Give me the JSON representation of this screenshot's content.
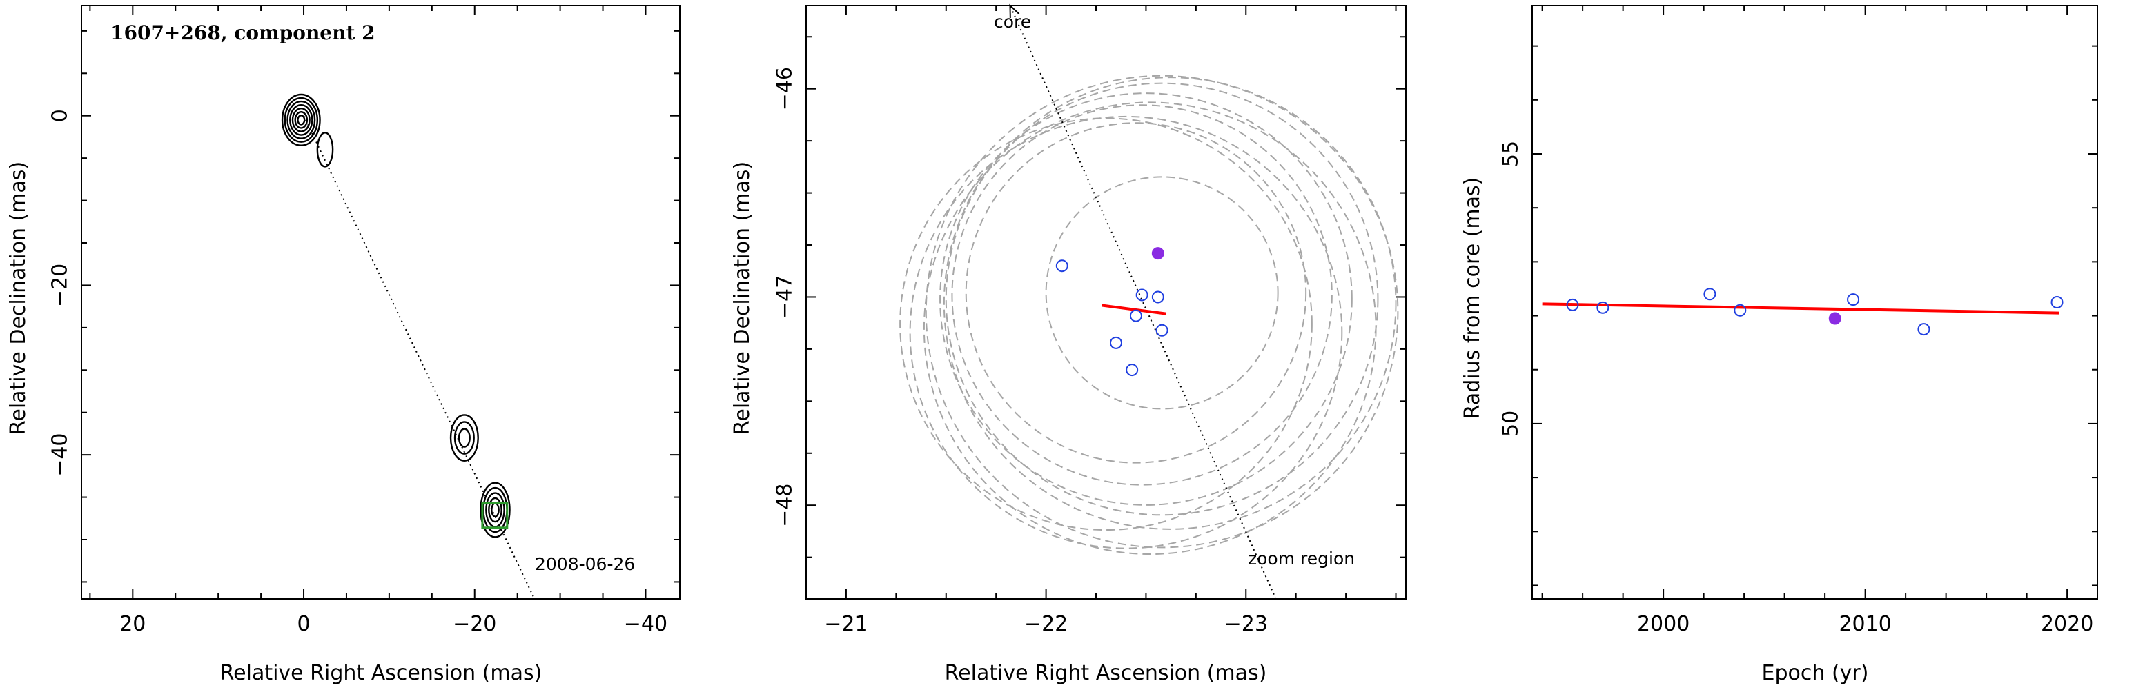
{
  "chart_data": [
    {
      "type": "contour",
      "title": "1607+268, component 2",
      "annotation": "2008-06-26",
      "xlabel": "Relative Right Ascension (mas)",
      "ylabel": "Relative Declination (mas)",
      "xlim": [
        26,
        -44
      ],
      "ylim": [
        -57,
        13
      ],
      "xticks": [
        20,
        0,
        -20,
        -40
      ],
      "yticks": [
        0,
        -20,
        -40
      ],
      "jet_line": {
        "from": [
          0,
          0
        ],
        "to": [
          -27,
          -57
        ]
      },
      "zoom_box": {
        "x": [
          -20.9,
          -23.8
        ],
        "y": [
          -45.7,
          -48.6
        ],
        "color": "#2e9b2e"
      },
      "contour_groups": [
        {
          "center": [
            0.3,
            -0.5
          ],
          "levels": 7,
          "rx_max": 2.2,
          "ry_max": 3.0
        },
        {
          "center": [
            -2.5,
            -4.0
          ],
          "levels": 1,
          "rx_max": 0.9,
          "ry_max": 2.0
        },
        {
          "center": [
            -18.8,
            -38.0
          ],
          "levels": 3,
          "rx_max": 1.6,
          "ry_max": 2.7
        },
        {
          "center": [
            -22.4,
            -46.5
          ],
          "levels": 5,
          "rx_max": 1.7,
          "ry_max": 3.2
        }
      ]
    },
    {
      "type": "scatter",
      "xlabel": "Relative Right Ascension (mas)",
      "ylabel": "Relative Declination (mas)",
      "xlim": [
        -20.8,
        -23.8
      ],
      "ylim": [
        -48.45,
        -45.6
      ],
      "xticks": [
        -21,
        -22,
        -23
      ],
      "yticks": [
        -46,
        -47,
        -48
      ],
      "labels": {
        "core": "core",
        "zoom": "zoom region"
      },
      "core_arrow": {
        "from": [
          -23.15,
          -48.45
        ],
        "to": [
          -21.82,
          -45.6
        ]
      },
      "points": [
        {
          "x": -22.08,
          "y": -46.85,
          "filled": false
        },
        {
          "x": -22.56,
          "y": -46.79,
          "filled": true
        },
        {
          "x": -22.48,
          "y": -46.99,
          "filled": false
        },
        {
          "x": -22.56,
          "y": -47.0,
          "filled": false
        },
        {
          "x": -22.45,
          "y": -47.09,
          "filled": false
        },
        {
          "x": -22.35,
          "y": -47.22,
          "filled": false
        },
        {
          "x": -22.58,
          "y": -47.16,
          "filled": false
        },
        {
          "x": -22.43,
          "y": -47.35,
          "filled": false
        }
      ],
      "fit_segment": {
        "from": [
          -22.28,
          -47.04
        ],
        "to": [
          -22.6,
          -47.08
        ]
      },
      "beam_circles": [
        {
          "cx": -22.58,
          "cy": -46.98,
          "r": 0.58
        },
        {
          "cx": -22.45,
          "cy": -46.98,
          "r": 0.85
        },
        {
          "cx": -22.48,
          "cy": -46.99,
          "r": 0.95
        },
        {
          "cx": -22.5,
          "cy": -47.01,
          "r": 1.03
        },
        {
          "cx": -22.58,
          "cy": -47.01,
          "r": 1.08
        },
        {
          "cx": -22.62,
          "cy": -47.03,
          "r": 1.13
        },
        {
          "cx": -22.58,
          "cy": -47.07,
          "r": 1.18
        },
        {
          "cx": -22.52,
          "cy": -47.15,
          "r": 1.13
        },
        {
          "cx": -22.4,
          "cy": -47.17,
          "r": 1.08
        },
        {
          "cx": -22.3,
          "cy": -47.13,
          "r": 1.03
        }
      ]
    },
    {
      "type": "scatter",
      "xlabel": "Epoch (yr)",
      "ylabel": "Radius from core (mas)",
      "xlim": [
        1993.5,
        2021.5
      ],
      "ylim": [
        46.75,
        57.75
      ],
      "xticks": [
        2000,
        2010,
        2020
      ],
      "yticks": [
        50,
        55
      ],
      "points": [
        {
          "x": 1995.5,
          "y": 52.2,
          "filled": false
        },
        {
          "x": 1997.0,
          "y": 52.15,
          "filled": false
        },
        {
          "x": 2002.3,
          "y": 52.4,
          "filled": false
        },
        {
          "x": 2003.8,
          "y": 52.1,
          "filled": false
        },
        {
          "x": 2008.5,
          "y": 51.95,
          "filled": true
        },
        {
          "x": 2009.4,
          "y": 52.3,
          "filled": false
        },
        {
          "x": 2012.9,
          "y": 51.75,
          "filled": false
        },
        {
          "x": 2019.5,
          "y": 52.25,
          "filled": false
        }
      ],
      "fit_line": {
        "from": [
          1994.0,
          52.22
        ],
        "to": [
          2019.6,
          52.05
        ],
        "color": "#ff0000"
      }
    }
  ]
}
